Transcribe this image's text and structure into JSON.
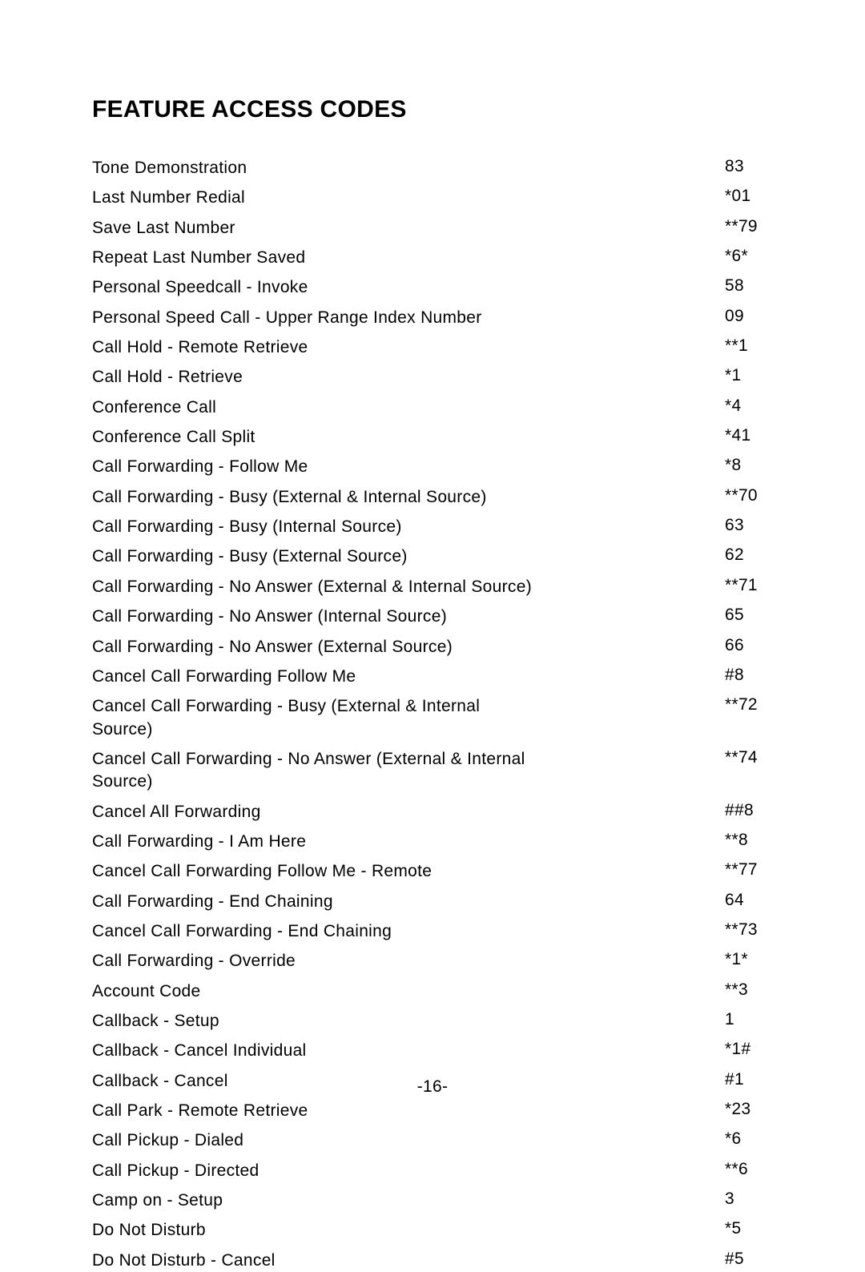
{
  "title": "FEATURE ACCESS CODES",
  "page_number": "-16-",
  "rows": [
    {
      "feature": "Tone Demonstration",
      "code": "83"
    },
    {
      "feature": "Last Number Redial",
      "code": "*01"
    },
    {
      "feature": "Save Last Number",
      "code": "**79"
    },
    {
      "feature": "Repeat Last Number Saved",
      "code": "*6*"
    },
    {
      "feature": "Personal Speedcall - Invoke",
      "code": "58"
    },
    {
      "feature": "Personal Speed Call - Upper Range Index Number",
      "code": "09"
    },
    {
      "feature": "Call Hold - Remote Retrieve",
      "code": "**1"
    },
    {
      "feature": "Call Hold - Retrieve",
      "code": "*1"
    },
    {
      "feature": "Conference Call",
      "code": "*4"
    },
    {
      "feature": "Conference Call Split",
      "code": "*41"
    },
    {
      "feature": "Call Forwarding - Follow Me",
      "code": "*8"
    },
    {
      "feature": "Call Forwarding - Busy (External & Internal Source)",
      "code": "**70"
    },
    {
      "feature": "Call Forwarding - Busy (Internal Source)",
      "code": "63"
    },
    {
      "feature": "Call Forwarding - Busy (External Source)",
      "code": "62"
    },
    {
      "feature": "Call Forwarding - No Answer (External & Internal Source)",
      "code": "**71"
    },
    {
      "feature": "Call Forwarding - No Answer (Internal Source)",
      "code": "65"
    },
    {
      "feature": "Call Forwarding - No Answer (External Source)",
      "code": "66"
    },
    {
      "feature": "Cancel Call Forwarding Follow Me",
      "code": "#8"
    },
    {
      "feature": "Cancel Call Forwarding - Busy (External & Internal Source)",
      "code": "**72"
    },
    {
      "feature": "Cancel Call Forwarding - No Answer (External & Internal Source)",
      "code": "**74"
    },
    {
      "feature": "Cancel All Forwarding",
      "code": "##8"
    },
    {
      "feature": "Call Forwarding - I Am Here",
      "code": "**8"
    },
    {
      "feature": "Cancel Call Forwarding Follow Me - Remote",
      "code": "**77"
    },
    {
      "feature": "Call Forwarding - End Chaining",
      "code": "64"
    },
    {
      "feature": "Cancel Call Forwarding - End Chaining",
      "code": "**73"
    },
    {
      "feature": "Call Forwarding - Override",
      "code": "*1*"
    },
    {
      "feature": "Account Code",
      "code": "**3"
    },
    {
      "feature": "Callback - Setup",
      "code": "1"
    },
    {
      "feature": "Callback - Cancel Individual",
      "code": "*1#"
    },
    {
      "feature": "Callback - Cancel",
      "code": "#1"
    },
    {
      "feature": "Call Park - Remote Retrieve",
      "code": "*23"
    },
    {
      "feature": "Call Pickup - Dialed",
      "code": "*6"
    },
    {
      "feature": "Call Pickup - Directed",
      "code": "**6"
    },
    {
      "feature": "Camp on - Setup",
      "code": "3"
    },
    {
      "feature": "Do Not Disturb",
      "code": "*5"
    },
    {
      "feature": "Do Not Disturb - Cancel",
      "code": "#5"
    }
  ]
}
